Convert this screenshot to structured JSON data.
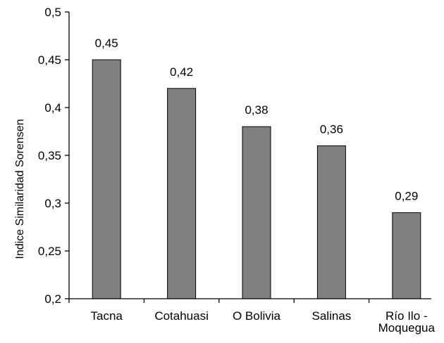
{
  "chart_data": {
    "type": "bar",
    "categories": [
      "Tacna",
      "Cotahuasi",
      "O Bolivia",
      "Salinas",
      "Río Ilo - Moquegua"
    ],
    "category_lines": [
      [
        "Tacna"
      ],
      [
        "Cotahuasi"
      ],
      [
        "O Bolivia"
      ],
      [
        "Salinas"
      ],
      [
        "Río Ilo -",
        "Moquegua"
      ]
    ],
    "values": [
      0.45,
      0.42,
      0.38,
      0.36,
      0.29
    ],
    "value_labels": [
      "0,45",
      "0,42",
      "0,38",
      "0,36",
      "0,29"
    ],
    "ylabel": "Indice Similaridad Sorensen",
    "xlabel": "",
    "ylim": [
      0.2,
      0.5
    ],
    "yticks": [
      0.2,
      0.25,
      0.3,
      0.35,
      0.4,
      0.45,
      0.5
    ],
    "ytick_labels": [
      "0,2",
      "0,25",
      "0,3",
      "0,35",
      "0,4",
      "0,45",
      "0,5"
    ],
    "grid": false,
    "legend": "none",
    "colors": {
      "bar_fill": "#808080",
      "bar_stroke": "#000000",
      "axis": "#000000"
    }
  }
}
